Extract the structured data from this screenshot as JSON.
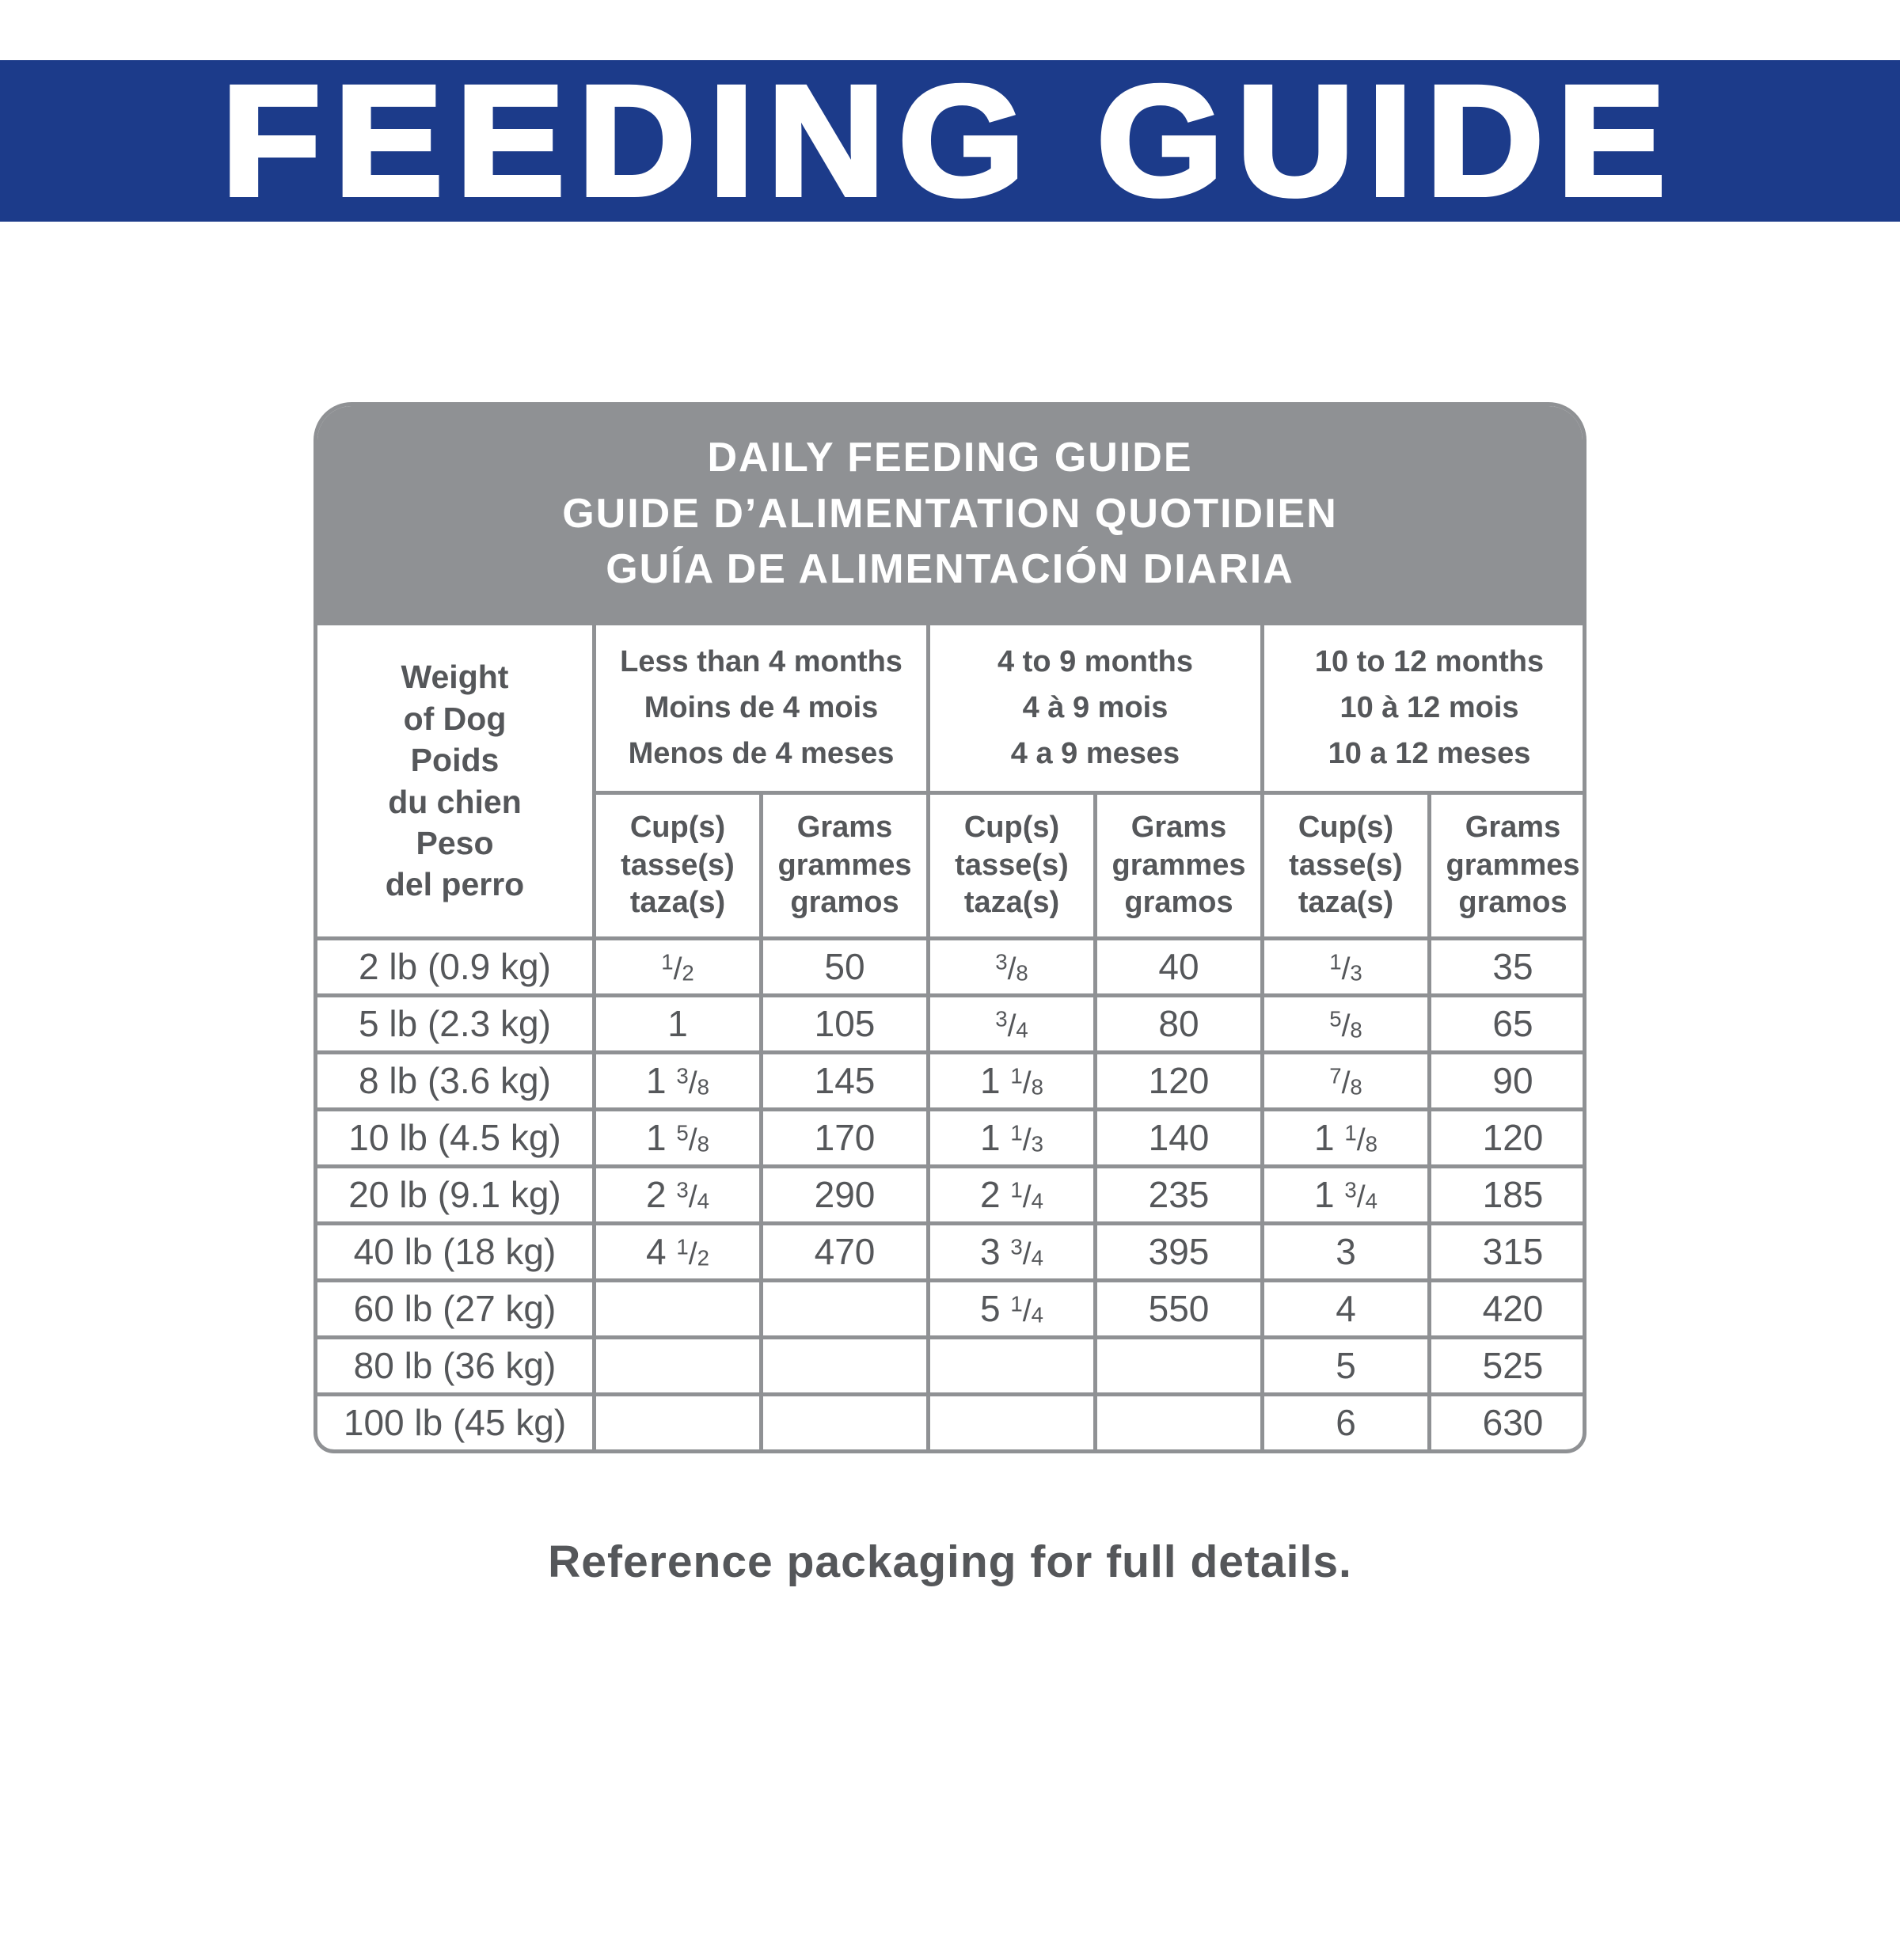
{
  "colors": {
    "banner_blue": "#1c3b8a",
    "header_gray": "#8f9194",
    "text_gray": "#55575a"
  },
  "banner": {
    "title": "FEEDING GUIDE"
  },
  "table": {
    "title_lines": [
      "DAILY FEEDING GUIDE",
      "GUIDE D’ALIMENTATION QUOTIDIEN",
      "GUÍA DE ALIMENTACIÓN DIARIA"
    ],
    "weight_lines": [
      "Weight",
      "of Dog",
      "Poids",
      "du chien",
      "Peso",
      "del perro"
    ],
    "age_groups": [
      {
        "lines": [
          "Less than 4 months",
          "Moins de 4 mois",
          "Menos de 4 meses"
        ]
      },
      {
        "lines": [
          "4 to 9 months",
          "4 à 9 mois",
          "4 a 9 meses"
        ]
      },
      {
        "lines": [
          "10 to 12 months",
          "10 à 12 mois",
          "10 a 12 meses"
        ]
      }
    ],
    "units": {
      "cups": [
        "Cup(s)",
        "tasse(s)",
        "taza(s)"
      ],
      "grams": [
        "Grams",
        "grammes",
        "gramos"
      ]
    },
    "rows": [
      {
        "weight": "2 lb (0.9 kg)",
        "cells": [
          "1/2",
          "50",
          "3/8",
          "40",
          "1/3",
          "35"
        ]
      },
      {
        "weight": "5 lb (2.3 kg)",
        "cells": [
          "1",
          "105",
          "3/4",
          "80",
          "5/8",
          "65"
        ]
      },
      {
        "weight": "8 lb (3.6 kg)",
        "cells": [
          "1 3/8",
          "145",
          "1 1/8",
          "120",
          "7/8",
          "90"
        ]
      },
      {
        "weight": "10 lb (4.5 kg)",
        "cells": [
          "1 5/8",
          "170",
          "1 1/3",
          "140",
          "1 1/8",
          "120"
        ]
      },
      {
        "weight": "20 lb (9.1 kg)",
        "cells": [
          "2 3/4",
          "290",
          "2 1/4",
          "235",
          "1 3/4",
          "185"
        ]
      },
      {
        "weight": "40 lb (18 kg)",
        "cells": [
          "4 1/2",
          "470",
          "3 3/4",
          "395",
          "3",
          "315"
        ]
      },
      {
        "weight": "60 lb (27 kg)",
        "cells": [
          "",
          "",
          "5 1/4",
          "550",
          "4",
          "420"
        ]
      },
      {
        "weight": "80 lb (36 kg)",
        "cells": [
          "",
          "",
          "",
          "",
          "5",
          "525"
        ]
      },
      {
        "weight": "100 lb (45 kg)",
        "cells": [
          "",
          "",
          "",
          "",
          "6",
          "630"
        ]
      }
    ]
  },
  "footer": {
    "note": "Reference packaging for full details."
  }
}
